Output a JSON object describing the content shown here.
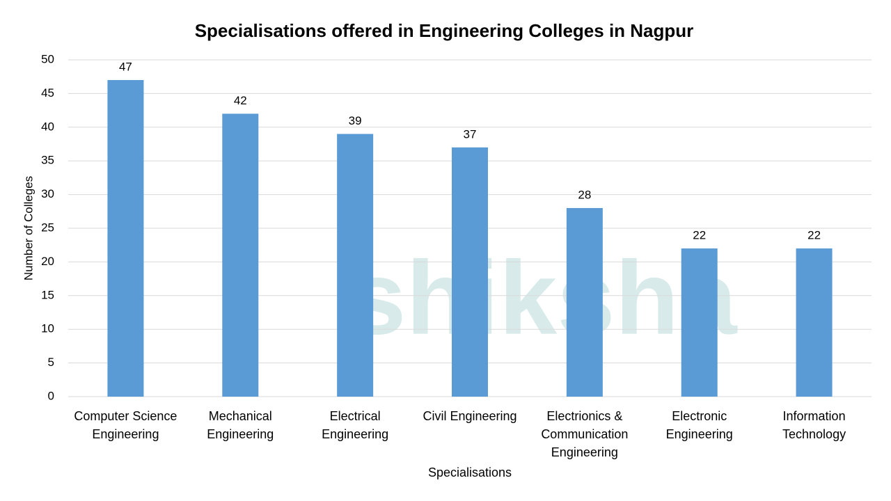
{
  "chart_data": {
    "type": "bar",
    "title": "Specialisations offered in Engineering Colleges in Nagpur",
    "x_label": "Specialisations",
    "y_label": "Number of Colleges",
    "watermark": "shiksha",
    "categories": [
      "Computer Science Engineering",
      "Mechanical Engineering",
      "Electrical Engineering",
      "Civil Engineering",
      "Electrionics & Communication Engineering",
      "Electronic Engineering",
      "Information Technology"
    ],
    "values": [
      47,
      42,
      39,
      37,
      28,
      22,
      22
    ],
    "color": "#5b9bd5",
    "ylim": [
      0,
      50
    ],
    "yticks": [
      0,
      5,
      10,
      15,
      20,
      25,
      30,
      35,
      40,
      45,
      50
    ],
    "grid": true
  }
}
